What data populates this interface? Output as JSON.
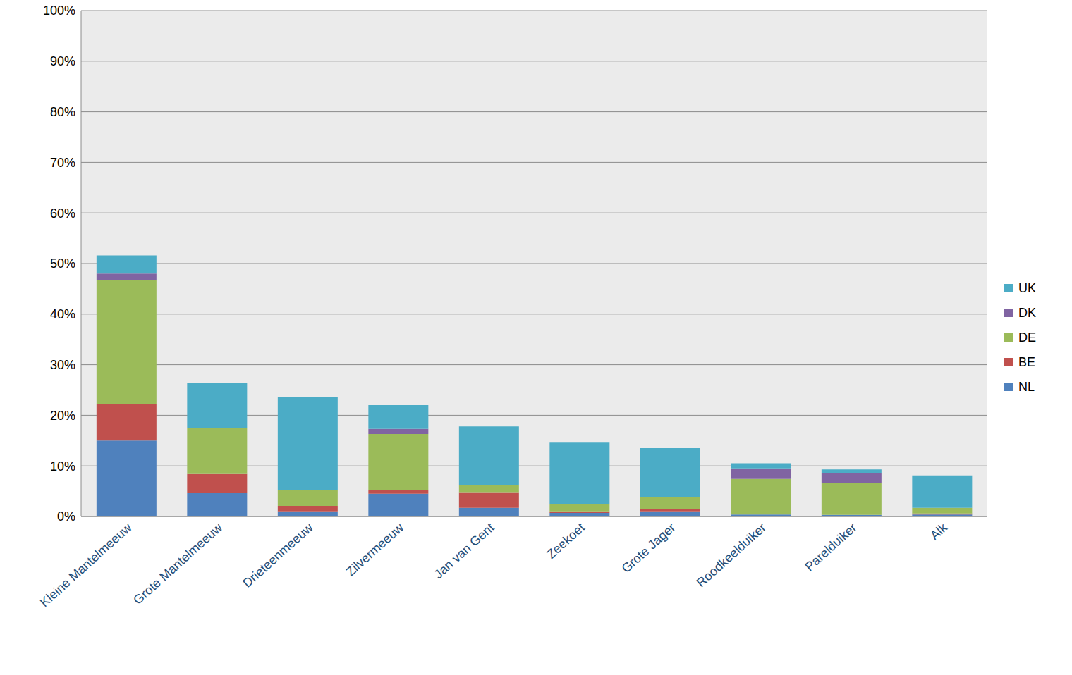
{
  "chart_data": {
    "type": "bar",
    "stacked": true,
    "grid": true,
    "legend": "right",
    "categories": [
      "Kleine Mantelmeeuw",
      "Grote Mantelmeeuw",
      "Drieteenmeeuw",
      "Zilvermeeuw",
      "Jan van Gent",
      "Zeekoet",
      "Grote Jager",
      "Roodkeelduiker",
      "Parelduiker",
      "Alk"
    ],
    "series": [
      {
        "name": "NL",
        "color": "#4f81bd",
        "values": [
          15.0,
          4.6,
          1.0,
          4.5,
          1.7,
          0.7,
          1.0,
          0.4,
          0.3,
          0.4
        ]
      },
      {
        "name": "BE",
        "color": "#c0504d",
        "values": [
          7.2,
          3.8,
          1.1,
          0.8,
          3.1,
          0.3,
          0.5,
          0.0,
          0.0,
          0.2
        ]
      },
      {
        "name": "DE",
        "color": "#9bbb59",
        "values": [
          24.5,
          9.0,
          3.1,
          11.0,
          1.4,
          1.4,
          2.4,
          7.0,
          6.3,
          1.1
        ]
      },
      {
        "name": "DK",
        "color": "#8064a2",
        "values": [
          1.3,
          0.1,
          0.1,
          1.0,
          0.0,
          0.0,
          0.0,
          2.1,
          2.0,
          0.0
        ]
      },
      {
        "name": "UK",
        "color": "#4bacc6",
        "values": [
          3.6,
          8.9,
          18.3,
          4.7,
          11.6,
          12.2,
          9.6,
          1.0,
          0.7,
          6.4
        ]
      }
    ],
    "ylim": [
      0,
      100
    ],
    "yticks": [
      {
        "value": 0,
        "label": "0%"
      },
      {
        "value": 10,
        "label": "10%"
      },
      {
        "value": 20,
        "label": "20%"
      },
      {
        "value": 30,
        "label": "30%"
      },
      {
        "value": 40,
        "label": "40%"
      },
      {
        "value": 50,
        "label": "50%"
      },
      {
        "value": 60,
        "label": "60%"
      },
      {
        "value": 70,
        "label": "70%"
      },
      {
        "value": 80,
        "label": "80%"
      },
      {
        "value": 90,
        "label": "90%"
      },
      {
        "value": 100,
        "label": "100%"
      }
    ]
  }
}
